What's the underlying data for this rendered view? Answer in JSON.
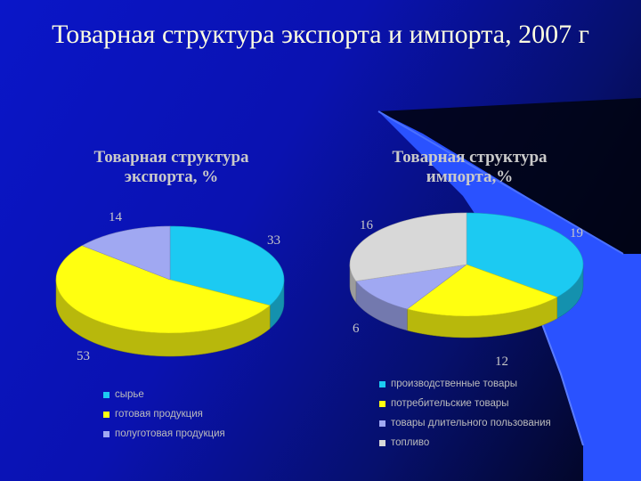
{
  "slide": {
    "title": "Товарная структура экспорта и импорта, 2007 г"
  },
  "colors": {
    "cyan": "#1ccaf2",
    "yellow": "#ffff10",
    "lavender": "#a0a8f2",
    "gray": "#d8d8d8",
    "accent_panel": "#2a52ff"
  },
  "chart_data": [
    {
      "type": "pie",
      "title": "Товарная структура экспорта, %",
      "title_lines": [
        "Товарная структура",
        "экспорта, %"
      ],
      "categories": [
        "сырье",
        "готовая продукция",
        "полуготовая продукция"
      ],
      "values": [
        33,
        53,
        14
      ],
      "value_labels": [
        "33",
        "53",
        "14"
      ],
      "legend_position": "bottom"
    },
    {
      "type": "pie",
      "title": "Товарная структура импорта,%",
      "title_lines": [
        "Товарная структура",
        "импорта,%"
      ],
      "categories": [
        "производственные товары",
        "потребительские товары",
        "товары длительного пользования",
        "топливо"
      ],
      "values": [
        19,
        12,
        6,
        16
      ],
      "value_labels": [
        "19",
        "12",
        "6",
        "16"
      ],
      "legend_position": "bottom"
    }
  ]
}
